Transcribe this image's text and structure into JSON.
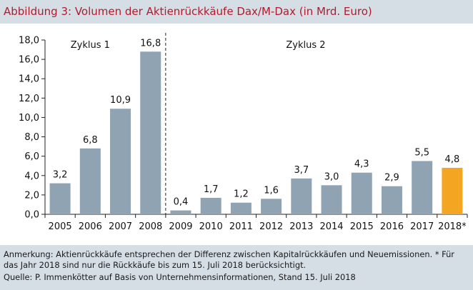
{
  "header": {
    "title": "Abbildung 3: Volumen der Aktienrückkäufe Dax/M-Dax (in Mrd. Euro)"
  },
  "footer": {
    "note": "Anmerkung: Aktienrückkäufe entsprechen der Differenz zwischen Kapitalrückkäufen und Neuemissionen. * Für das Jahr 2018 sind nur die Rückkäufe bis zum 15. Juli 2018 berücksichtigt.",
    "source": "Quelle: P. Immenkötter auf Basis von Unternehmensinformationen, Stand 15. Juli 2018"
  },
  "colors": {
    "bar": "#8fa3b2",
    "highlight_bar": "#f4a623",
    "title": "#b01c2e",
    "panel_background": "#d5dde5"
  },
  "chart_data": {
    "type": "bar",
    "title": "Abbildung 3: Volumen der Aktienrückkäufe Dax/M-Dax (in Mrd. Euro)",
    "categories": [
      "2005",
      "2006",
      "2007",
      "2008",
      "2009",
      "2010",
      "2011",
      "2012",
      "2013",
      "2014",
      "2015",
      "2016",
      "2017",
      "2018*"
    ],
    "values": [
      3.2,
      6.8,
      10.9,
      16.8,
      0.4,
      1.7,
      1.2,
      1.6,
      3.7,
      3.0,
      4.3,
      2.9,
      5.5,
      4.8
    ],
    "value_labels": [
      "3,2",
      "6,8",
      "10,9",
      "16,8",
      "0,4",
      "1,7",
      "1,2",
      "1,6",
      "3,7",
      "3,0",
      "4,3",
      "2,9",
      "5,5",
      "4,8"
    ],
    "highlight_category": "2018*",
    "ylim": [
      0,
      18
    ],
    "yticks": [
      0,
      2,
      4,
      6,
      8,
      10,
      12,
      14,
      16,
      18
    ],
    "ytick_labels": [
      "0,0",
      "2,0",
      "4,0",
      "6,0",
      "8,0",
      "10,0",
      "12,0",
      "14,0",
      "16,0",
      "18,0"
    ],
    "xlabel": "",
    "ylabel": "",
    "grid": false,
    "annotations": [
      {
        "text": "Zyklus 1",
        "span": [
          "2005",
          "2008"
        ]
      },
      {
        "text": "Zyklus 2",
        "span": [
          "2009",
          "2018*"
        ]
      }
    ],
    "divider_between": [
      "2008",
      "2009"
    ]
  }
}
